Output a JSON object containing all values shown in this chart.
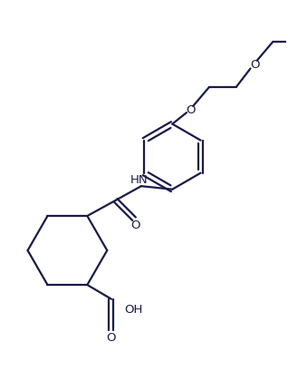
{
  "bg_color": "#ffffff",
  "line_color": "#1a1a4a",
  "line_width": 1.6,
  "figsize": [
    3.18,
    4.1
  ],
  "dpi": 100,
  "xlim": [
    0,
    10
  ],
  "ylim": [
    0,
    13
  ]
}
